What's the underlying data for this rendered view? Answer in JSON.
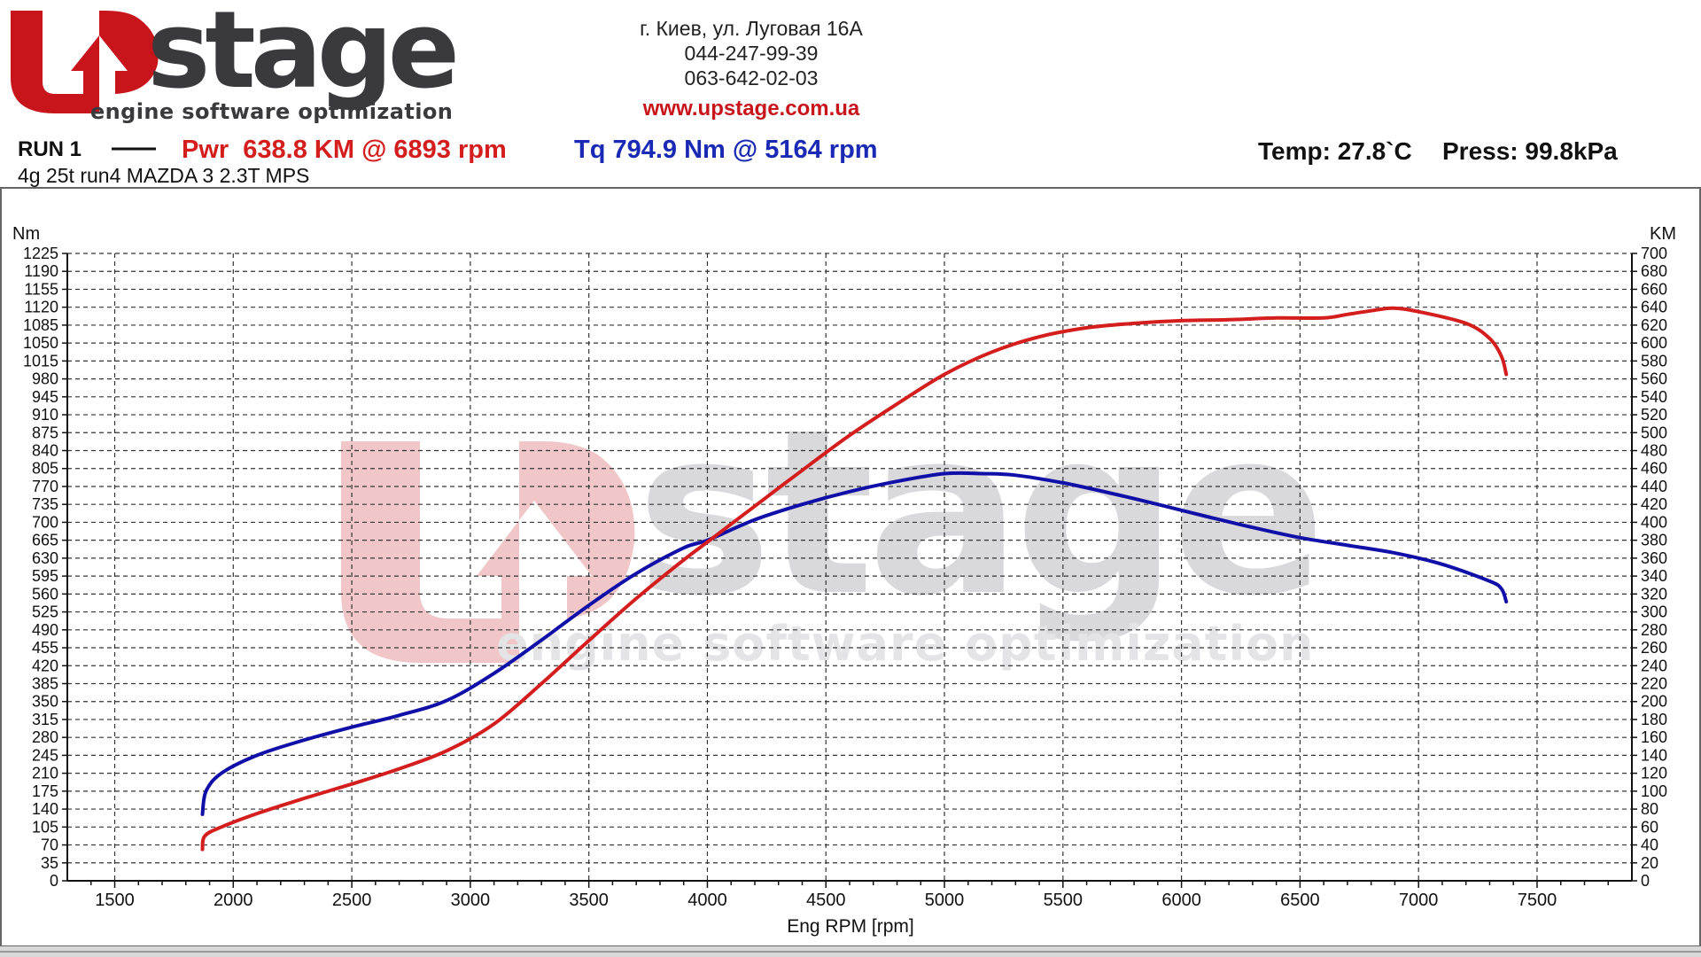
{
  "logo": {
    "brand": "stage",
    "tagline": "engine software optimization",
    "colors": {
      "red": "#c8141b",
      "dark": "#3a3a3c",
      "red_watermark": "#f0c6c8",
      "gray_watermark": "#d9d9dc"
    }
  },
  "contact": {
    "address": "г. Киев, ул. Луговая 16А",
    "phone1": "044-247-99-39",
    "phone2": "063-642-02-03",
    "website": "www.upstage.com.ua"
  },
  "run": {
    "label": "RUN 1",
    "description": "4g 25t run4 MAZDA 3 2.3T MPS",
    "power_summary": "Pwr  638.8 KM @ 6893 rpm",
    "torque_summary": "Tq 794.9 Nm @ 5164 rpm",
    "temp": "Temp: 27.8`C",
    "press": "Press: 99.8kPa"
  },
  "chart_data": {
    "type": "line",
    "xlabel": "Eng RPM [rpm]",
    "ylabel_left": "Nm",
    "ylabel_right": "KM",
    "xlim": [
      1300,
      7900
    ],
    "ylim_left": [
      0,
      1225
    ],
    "ylim_right": [
      0,
      700
    ],
    "x_ticks": [
      1500,
      2000,
      2500,
      3000,
      3500,
      4000,
      4500,
      5000,
      5500,
      6000,
      6500,
      7000,
      7500
    ],
    "x_minor_step": 100,
    "y_ticks_left": [
      0,
      35,
      70,
      105,
      140,
      175,
      210,
      245,
      280,
      315,
      350,
      385,
      420,
      455,
      490,
      525,
      560,
      595,
      630,
      665,
      700,
      735,
      770,
      805,
      840,
      875,
      910,
      945,
      980,
      1015,
      1050,
      1085,
      1120,
      1155,
      1190,
      1225
    ],
    "y_ticks_right": [
      0,
      20,
      40,
      60,
      80,
      100,
      120,
      140,
      160,
      180,
      200,
      220,
      240,
      260,
      280,
      300,
      320,
      340,
      360,
      380,
      400,
      420,
      440,
      460,
      480,
      500,
      520,
      540,
      560,
      580,
      600,
      620,
      640,
      660,
      680,
      700
    ],
    "grid": true,
    "series": [
      {
        "name": "Tq",
        "axis": "left",
        "color": "#1010a8",
        "x": [
          1870,
          1885,
          1950,
          2100,
          2300,
          2500,
          2700,
          2900,
          3100,
          3300,
          3500,
          3700,
          3900,
          4000,
          4200,
          4400,
          4600,
          4800,
          5000,
          5164,
          5300,
          5500,
          5700,
          5900,
          6100,
          6300,
          6500,
          6700,
          6900,
          7100,
          7300,
          7350,
          7370
        ],
        "y": [
          130,
          175,
          210,
          245,
          275,
          300,
          323,
          352,
          405,
          470,
          538,
          600,
          650,
          665,
          705,
          735,
          760,
          780,
          795,
          795,
          792,
          777,
          757,
          735,
          712,
          690,
          670,
          655,
          640,
          618,
          585,
          570,
          545
        ]
      },
      {
        "name": "Pwr",
        "axis": "right",
        "color": "#d41e1e",
        "x": [
          1870,
          1880,
          1950,
          2100,
          2300,
          2500,
          2700,
          2900,
          3100,
          3300,
          3500,
          3700,
          3900,
          4000,
          4200,
          4400,
          4600,
          4800,
          5000,
          5200,
          5400,
          5600,
          5800,
          6000,
          6200,
          6400,
          6600,
          6700,
          6800,
          6893,
          7000,
          7200,
          7300,
          7350,
          7370
        ],
        "y": [
          35,
          50,
          60,
          75,
          92,
          108,
          125,
          145,
          175,
          220,
          268,
          315,
          358,
          378,
          418,
          458,
          497,
          532,
          565,
          590,
          607,
          617,
          622,
          625,
          626,
          628,
          628,
          632,
          636,
          639,
          635,
          622,
          605,
          585,
          565
        ]
      }
    ]
  }
}
